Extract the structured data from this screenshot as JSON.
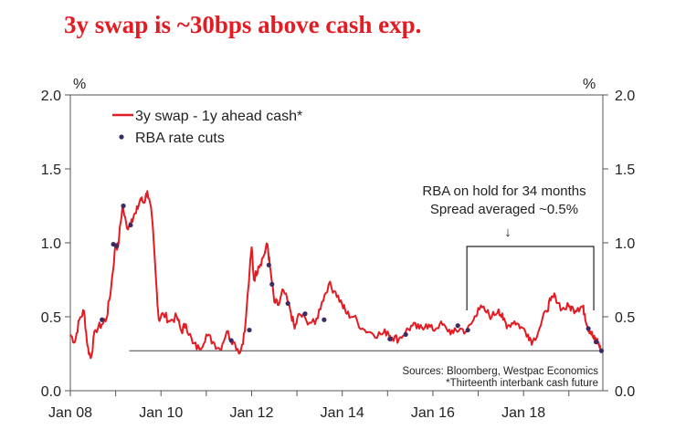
{
  "chart_data": {
    "type": "line",
    "title": "3y swap is ~30bps above cash exp.",
    "ylabel_left": "%",
    "ylabel_right": "%",
    "ylim": [
      0,
      2
    ],
    "y_ticks": [
      "0.0",
      "0.5",
      "1.0",
      "1.5",
      "2.0"
    ],
    "x_tick_labels": [
      "Jan 08",
      "Jan 10",
      "Jan 12",
      "Jan 14",
      "Jan 16",
      "Jan 18"
    ],
    "x_range_years": [
      2008.0,
      2019.75
    ],
    "colors": {
      "series": "#e31b23",
      "cuts": "#3d2b63",
      "title": "#e31b23"
    },
    "series": [
      {
        "name": "3y swap - 1y ahead cash*",
        "points": [
          [
            2008.0,
            0.38
          ],
          [
            2008.1,
            0.33
          ],
          [
            2008.2,
            0.48
          ],
          [
            2008.3,
            0.54
          ],
          [
            2008.38,
            0.3
          ],
          [
            2008.45,
            0.22
          ],
          [
            2008.55,
            0.41
          ],
          [
            2008.7,
            0.45
          ],
          [
            2008.8,
            0.49
          ],
          [
            2008.9,
            0.7
          ],
          [
            2009.0,
            0.99
          ],
          [
            2009.05,
            0.97
          ],
          [
            2009.15,
            1.25
          ],
          [
            2009.25,
            1.1
          ],
          [
            2009.35,
            1.16
          ],
          [
            2009.45,
            1.2
          ],
          [
            2009.55,
            1.3
          ],
          [
            2009.62,
            1.27
          ],
          [
            2009.7,
            1.35
          ],
          [
            2009.8,
            1.18
          ],
          [
            2009.9,
            0.7
          ],
          [
            2009.95,
            0.48
          ],
          [
            2010.05,
            0.52
          ],
          [
            2010.2,
            0.47
          ],
          [
            2010.35,
            0.5
          ],
          [
            2010.45,
            0.4
          ],
          [
            2010.55,
            0.45
          ],
          [
            2010.7,
            0.32
          ],
          [
            2010.85,
            0.28
          ],
          [
            2011.0,
            0.38
          ],
          [
            2011.15,
            0.33
          ],
          [
            2011.3,
            0.28
          ],
          [
            2011.45,
            0.4
          ],
          [
            2011.6,
            0.33
          ],
          [
            2011.75,
            0.26
          ],
          [
            2011.85,
            0.4
          ],
          [
            2012.0,
            0.97
          ],
          [
            2012.05,
            0.75
          ],
          [
            2012.15,
            0.84
          ],
          [
            2012.25,
            0.9
          ],
          [
            2012.35,
            0.99
          ],
          [
            2012.4,
            0.85
          ],
          [
            2012.5,
            0.6
          ],
          [
            2012.6,
            0.58
          ],
          [
            2012.7,
            0.68
          ],
          [
            2012.85,
            0.55
          ],
          [
            2012.95,
            0.42
          ],
          [
            2013.05,
            0.52
          ],
          [
            2013.2,
            0.48
          ],
          [
            2013.4,
            0.45
          ],
          [
            2013.55,
            0.6
          ],
          [
            2013.7,
            0.72
          ],
          [
            2013.85,
            0.67
          ],
          [
            2014.0,
            0.58
          ],
          [
            2014.1,
            0.52
          ],
          [
            2014.25,
            0.5
          ],
          [
            2014.45,
            0.42
          ],
          [
            2014.65,
            0.39
          ],
          [
            2014.85,
            0.38
          ],
          [
            2015.0,
            0.4
          ],
          [
            2015.1,
            0.36
          ],
          [
            2015.25,
            0.35
          ],
          [
            2015.4,
            0.4
          ],
          [
            2015.55,
            0.44
          ],
          [
            2015.7,
            0.42
          ],
          [
            2015.85,
            0.45
          ],
          [
            2016.0,
            0.41
          ],
          [
            2016.15,
            0.45
          ],
          [
            2016.3,
            0.42
          ],
          [
            2016.45,
            0.39
          ],
          [
            2016.6,
            0.42
          ],
          [
            2016.75,
            0.4
          ],
          [
            2016.9,
            0.48
          ],
          [
            2017.0,
            0.56
          ],
          [
            2017.15,
            0.54
          ],
          [
            2017.3,
            0.5
          ],
          [
            2017.45,
            0.55
          ],
          [
            2017.55,
            0.48
          ],
          [
            2017.65,
            0.44
          ],
          [
            2017.8,
            0.47
          ],
          [
            2017.95,
            0.43
          ],
          [
            2018.1,
            0.38
          ],
          [
            2018.2,
            0.33
          ],
          [
            2018.35,
            0.42
          ],
          [
            2018.5,
            0.54
          ],
          [
            2018.6,
            0.61
          ],
          [
            2018.7,
            0.64
          ],
          [
            2018.85,
            0.55
          ],
          [
            2019.0,
            0.57
          ],
          [
            2019.1,
            0.55
          ],
          [
            2019.2,
            0.56
          ],
          [
            2019.3,
            0.57
          ],
          [
            2019.35,
            0.52
          ],
          [
            2019.42,
            0.43
          ],
          [
            2019.48,
            0.4
          ],
          [
            2019.55,
            0.35
          ],
          [
            2019.6,
            0.34
          ],
          [
            2019.65,
            0.33
          ],
          [
            2019.7,
            0.27
          ]
        ]
      },
      {
        "name": "RBA rate cuts",
        "type": "scatter",
        "points": [
          [
            2008.7,
            0.48
          ],
          [
            2008.95,
            0.99
          ],
          [
            2009.02,
            0.98
          ],
          [
            2009.17,
            1.25
          ],
          [
            2009.33,
            1.12
          ],
          [
            2011.55,
            0.34
          ],
          [
            2011.95,
            0.41
          ],
          [
            2012.38,
            0.85
          ],
          [
            2012.45,
            0.72
          ],
          [
            2012.8,
            0.59
          ],
          [
            2013.18,
            0.52
          ],
          [
            2013.6,
            0.48
          ],
          [
            2015.05,
            0.35
          ],
          [
            2015.4,
            0.38
          ],
          [
            2016.55,
            0.44
          ],
          [
            2016.77,
            0.41
          ],
          [
            2019.43,
            0.42
          ],
          [
            2019.6,
            0.33
          ],
          [
            2019.72,
            0.27
          ]
        ]
      }
    ],
    "reference_line": {
      "value": 0.27,
      "x_from": 2009.3,
      "x_to": 2019.75
    },
    "bracket_years": [
      2016.75,
      2019.55
    ],
    "annotation": [
      "RBA on hold for 34 months",
      "Spread averaged ~0.5%"
    ],
    "annotation_arrow": "↓",
    "sources": [
      "Sources: Bloomberg, Westpac Economics",
      "*Thirteenth interbank cash future"
    ]
  }
}
